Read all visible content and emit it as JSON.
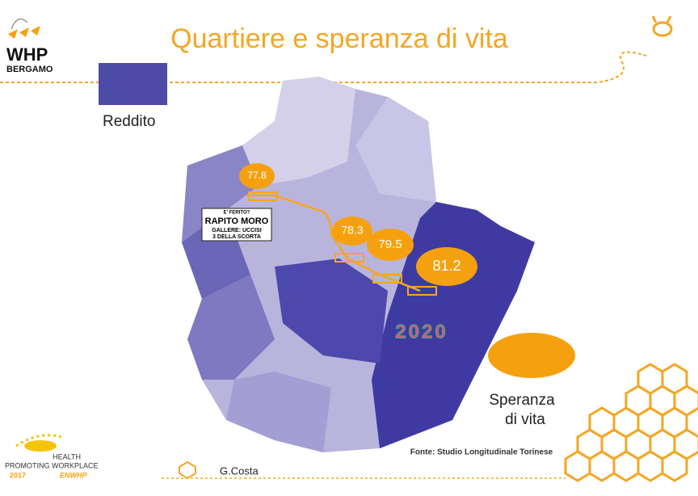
{
  "header": {
    "logo": "WHP",
    "logo_sub": "BERGAMO",
    "title": "Quartiere e speranza di vita"
  },
  "legend": {
    "income": "Reddito",
    "life_expectancy": [
      "Speranza",
      "di vita"
    ]
  },
  "map": {
    "labels": [
      77.8,
      78.3,
      79.5,
      81.2
    ],
    "newspaper": [
      "E' FERITO?",
      "RAPITO MORO",
      "GALLERE: UCCISI",
      "3 DELLA SCORTA"
    ],
    "event_logo": "2020"
  },
  "footer": {
    "source": "Fonte: Studio Longitudinale Torinese",
    "author": "G.Costa",
    "badge": [
      "HEALTH",
      "PROMOTING WORKPLACE",
      "2017",
      "ENWHP"
    ]
  }
}
